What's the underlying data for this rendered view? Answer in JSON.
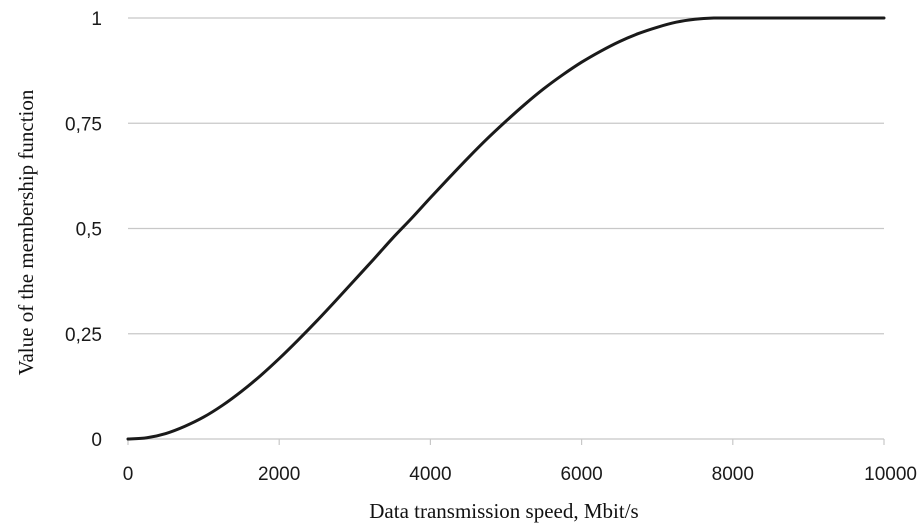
{
  "chart_data": {
    "type": "line",
    "title": "",
    "xlabel": "Data transmission speed, Mbit/s",
    "ylabel": "Value of the membership function",
    "xlim": [
      0,
      10000
    ],
    "ylim": [
      0,
      1
    ],
    "x_ticks": [
      {
        "value": 0,
        "label": "0"
      },
      {
        "value": 2000,
        "label": "2000"
      },
      {
        "value": 4000,
        "label": "4000"
      },
      {
        "value": 6000,
        "label": "6000"
      },
      {
        "value": 8000,
        "label": "8000"
      },
      {
        "value": 10000,
        "label": "10000"
      }
    ],
    "y_ticks": [
      {
        "value": 0,
        "label": "0"
      },
      {
        "value": 0.25,
        "label": "0,25"
      },
      {
        "value": 0.5,
        "label": "0,5"
      },
      {
        "value": 0.75,
        "label": "0,75"
      },
      {
        "value": 1,
        "label": "1"
      }
    ],
    "grid": "horizontal",
    "legend": "none",
    "line_color": "#1a1a1a",
    "grid_color": "#c8c8c8",
    "series": [
      {
        "x": [
          0,
          250,
          500,
          750,
          1000,
          1250,
          1500,
          1750,
          2000,
          2250,
          2500,
          2750,
          3000,
          3250,
          3500,
          3750,
          4000,
          4250,
          4500,
          4750,
          5000,
          5250,
          5500,
          5750,
          6000,
          6250,
          6500,
          6750,
          7000,
          7250,
          7500,
          7750,
          8000,
          8500,
          9000,
          9500,
          10000
        ],
        "values": [
          0,
          0.003,
          0.013,
          0.03,
          0.052,
          0.08,
          0.113,
          0.15,
          0.191,
          0.235,
          0.281,
          0.329,
          0.378,
          0.427,
          0.477,
          0.524,
          0.573,
          0.621,
          0.668,
          0.713,
          0.755,
          0.795,
          0.832,
          0.865,
          0.895,
          0.921,
          0.944,
          0.963,
          0.978,
          0.99,
          0.997,
          1,
          1,
          1,
          1,
          1,
          1
        ]
      }
    ]
  }
}
